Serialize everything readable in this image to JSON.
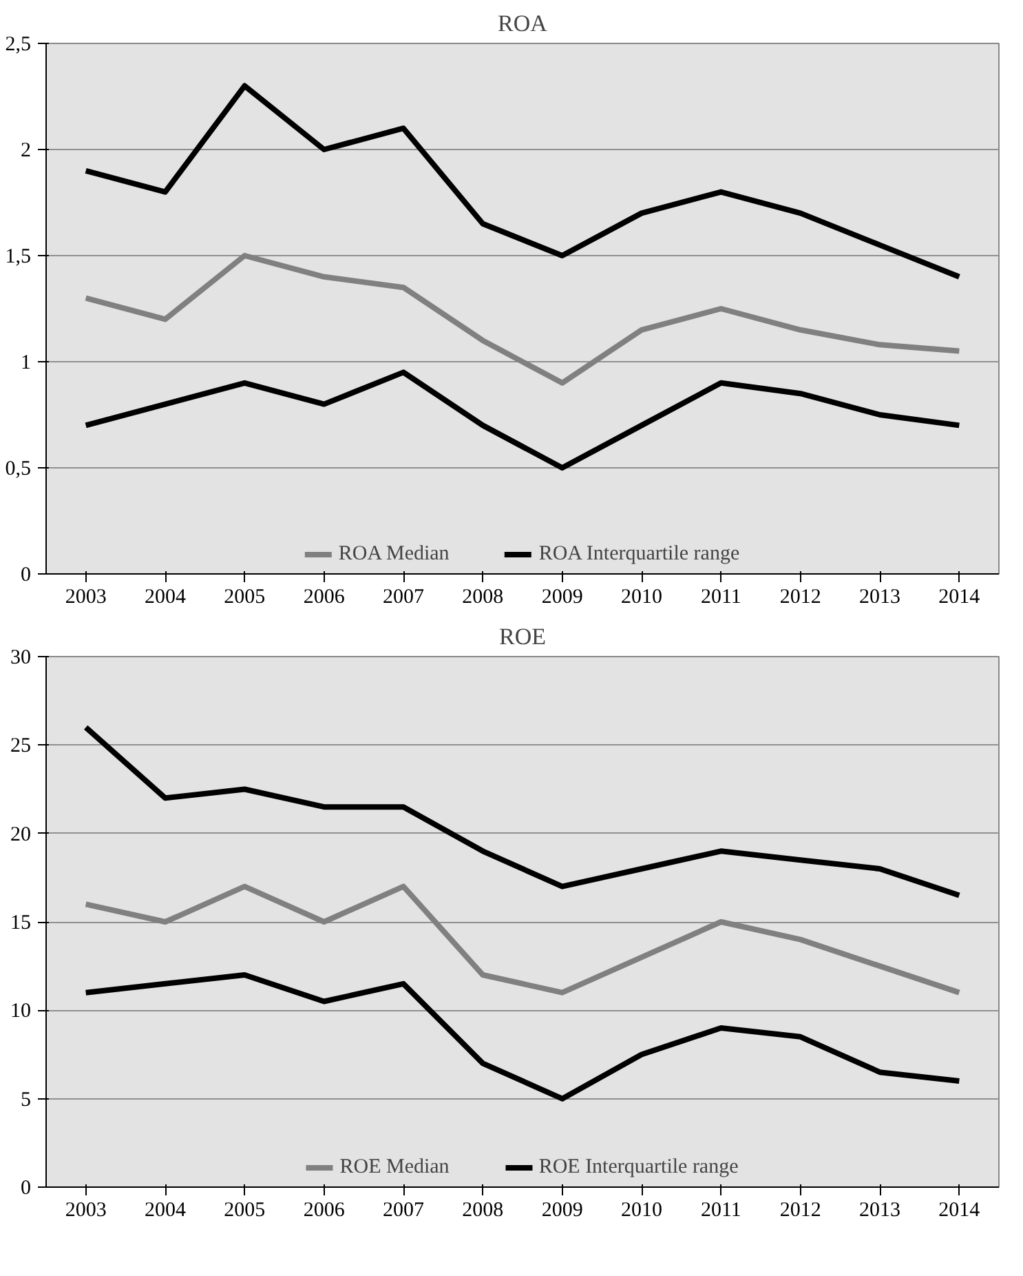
{
  "chart_data": [
    {
      "type": "line",
      "title": "ROA",
      "categories": [
        "2003",
        "2004",
        "2005",
        "2006",
        "2007",
        "2008",
        "2009",
        "2010",
        "2011",
        "2012",
        "2013",
        "2014"
      ],
      "series": [
        {
          "name": "ROA Median",
          "color": "#808080",
          "values": [
            1.3,
            1.2,
            1.5,
            1.4,
            1.35,
            1.1,
            0.9,
            1.15,
            1.25,
            1.15,
            1.08,
            1.05
          ]
        },
        {
          "name": "ROA Interquartile range",
          "color": "#000000",
          "values": [
            1.9,
            1.8,
            2.3,
            2.0,
            2.1,
            1.65,
            1.5,
            1.7,
            1.8,
            1.7,
            1.55,
            1.4
          ]
        },
        {
          "color": "#000000",
          "values": [
            0.7,
            0.8,
            0.9,
            0.8,
            0.95,
            0.7,
            0.5,
            0.7,
            0.9,
            0.85,
            0.75,
            0.7
          ]
        }
      ],
      "ylim": [
        0,
        2.5
      ],
      "yticks": [
        0,
        {
          "value": 0.5,
          "label": "0,5"
        },
        1,
        {
          "value": 1.5,
          "label": "1,5"
        },
        2,
        {
          "value": 2.5,
          "label": "2,5"
        }
      ],
      "grid": "y",
      "legend": "bottom",
      "marker": "none",
      "line_style": "solid"
    },
    {
      "type": "line",
      "title": "ROE",
      "categories": [
        "2003",
        "2004",
        "2005",
        "2006",
        "2007",
        "2008",
        "2009",
        "2010",
        "2011",
        "2012",
        "2013",
        "2014"
      ],
      "series": [
        {
          "name": "ROE Median",
          "color": "#808080",
          "values": [
            16,
            15,
            17,
            15,
            17,
            12,
            11,
            13,
            15,
            14,
            12.5,
            11
          ]
        },
        {
          "name": "ROE Interquartile range",
          "color": "#000000",
          "values": [
            26,
            22,
            22.5,
            21.5,
            21.5,
            19,
            17,
            18,
            19,
            18.5,
            18,
            16.5
          ]
        },
        {
          "color": "#000000",
          "values": [
            11,
            11.5,
            12,
            10.5,
            11.5,
            7,
            5,
            7.5,
            9,
            8.5,
            6.5,
            6
          ]
        }
      ],
      "ylim": [
        0,
        30
      ],
      "yticks": [
        0,
        5,
        10,
        15,
        20,
        25,
        30
      ],
      "grid": "y",
      "legend": "bottom",
      "marker": "none",
      "line_style": "solid"
    }
  ]
}
